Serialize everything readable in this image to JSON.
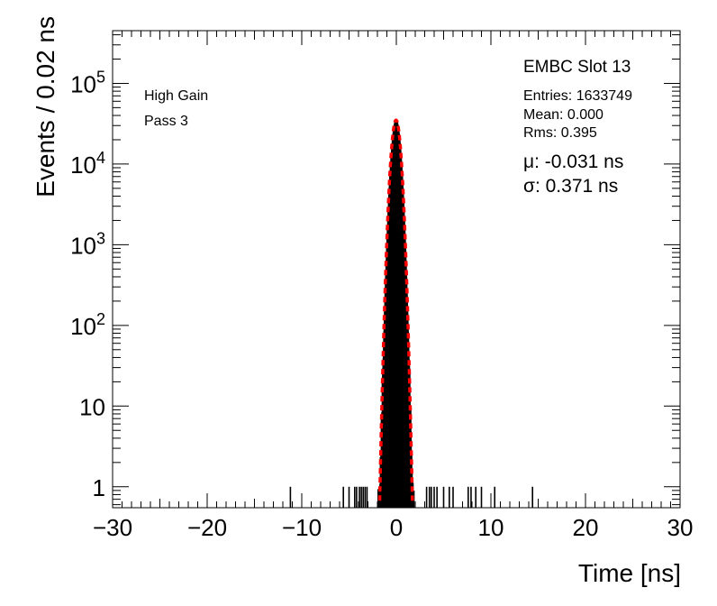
{
  "chart_data": {
    "type": "histogram",
    "xlabel": "Time [ns]",
    "ylabel": "Events / 0.02 ns",
    "xlim": [
      -30,
      30
    ],
    "ylim": [
      0.55,
      450000
    ],
    "yscale": "log",
    "x_ticks": [
      -30,
      -20,
      -10,
      0,
      10,
      20,
      30
    ],
    "x_tick_labels": [
      "−30",
      "−20",
      "−10",
      "0",
      "10",
      "20",
      "30"
    ],
    "y_ticks": [
      {
        "value": 1,
        "base": "1",
        "exp": ""
      },
      {
        "value": 10,
        "base": "10",
        "exp": ""
      },
      {
        "value": 100,
        "base": "10",
        "exp": "2"
      },
      {
        "value": 1000,
        "base": "10",
        "exp": "3"
      },
      {
        "value": 10000,
        "base": "10",
        "exp": "4"
      },
      {
        "value": 100000,
        "base": "10",
        "exp": "5"
      }
    ],
    "annotations": {
      "gain": "High Gain",
      "pass": "Pass 3",
      "slot": "EMBC Slot 13",
      "entries": "Entries: 1633749",
      "mean": "Mean: 0.000",
      "rms": "Rms: 0.395",
      "mu": "μ: -0.031 ns",
      "sigma": "σ: 0.371 ns"
    },
    "series": [
      {
        "name": "",
        "kind": "histogram",
        "peak": 35000,
        "mean": -0.031,
        "sigma": 0.371,
        "core_range": [
          -2.6,
          2.8
        ],
        "isolated_bins": [
          -11.2,
          -5.6,
          -5.0,
          -4.4,
          -4.2,
          -3.9,
          -3.7,
          -3.5,
          -3.3,
          -3.1,
          3.2,
          3.5,
          3.7,
          4.0,
          4.3,
          5.0,
          5.6,
          6.0,
          7.6,
          7.9,
          8.4,
          9.0,
          10.4,
          14.4
        ],
        "color": "#000000"
      },
      {
        "name": "",
        "kind": "gaussian-fit",
        "mean": -0.031,
        "sigma": 0.371,
        "peak": 35000,
        "style": "dashed",
        "color": "#ff0000"
      }
    ],
    "grid": false,
    "legend": "none"
  }
}
